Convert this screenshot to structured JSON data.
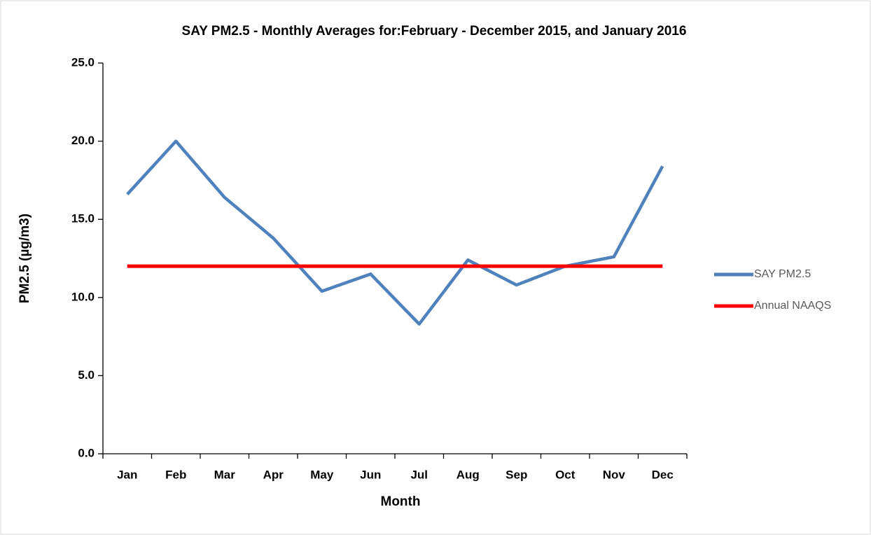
{
  "chart_data": {
    "type": "line",
    "title": "SAY PM2.5 - Monthly Averages for:February - December 2015, and January 2016",
    "x_label": "Month",
    "y_label": "PM2.5 (µg/m3)",
    "categories": [
      "Jan",
      "Feb",
      "Mar",
      "Apr",
      "May",
      "Jun",
      "Jul",
      "Aug",
      "Sep",
      "Oct",
      "Nov",
      "Dec"
    ],
    "series": [
      {
        "name": "SAY PM2.5",
        "color": "#4f81bd",
        "values": [
          16.6,
          20.0,
          16.4,
          13.8,
          10.4,
          11.5,
          8.3,
          12.4,
          10.8,
          12.0,
          12.6,
          18.4
        ]
      },
      {
        "name": "Annual NAAQS",
        "color": "#ff0000",
        "values": [
          12,
          12,
          12,
          12,
          12,
          12,
          12,
          12,
          12,
          12,
          12,
          12
        ]
      }
    ],
    "ylim": [
      0,
      25
    ],
    "yticks": [
      {
        "value": 0,
        "label": "0.0"
      },
      {
        "value": 5,
        "label": "5.0"
      },
      {
        "value": 10,
        "label": "10.0"
      },
      {
        "value": 15,
        "label": "15.0"
      },
      {
        "value": 20,
        "label": "20.0"
      },
      {
        "value": 25,
        "label": "25.0"
      }
    ],
    "legend": "right",
    "grid": false
  }
}
